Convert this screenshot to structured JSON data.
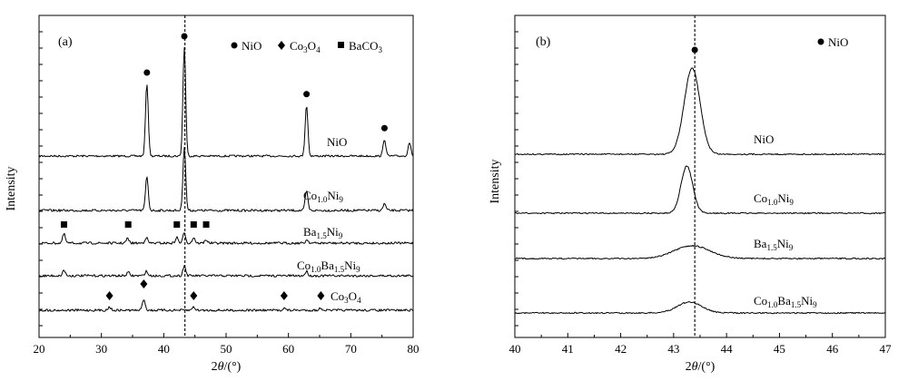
{
  "chart_data": [
    {
      "type": "line",
      "panel": "(a)",
      "xlabel": "2θ/(°)",
      "ylabel": "Intensity",
      "xlim": [
        20,
        80
      ],
      "xticks": [
        20,
        30,
        40,
        50,
        60,
        70,
        80
      ],
      "reference_line_x": 43.4,
      "legend": [
        {
          "marker": "circle",
          "label": "NiO"
        },
        {
          "marker": "diamond",
          "label": "Co3O4"
        },
        {
          "marker": "square",
          "label": "BaCO3"
        }
      ],
      "legend_placement": "top-right",
      "series": [
        {
          "name": "NiO",
          "peaks_2theta": [
            37.3,
            43.3,
            62.9,
            75.4,
            79.4
          ],
          "relative_intensity": [
            0.64,
            0.96,
            0.45,
            0.15,
            0.12
          ]
        },
        {
          "name": "Co1.0Ni9",
          "peaks_2theta": [
            37.3,
            43.3,
            62.9,
            75.4
          ],
          "relative_intensity": [
            0.3,
            0.56,
            0.17,
            0.06
          ]
        },
        {
          "name": "Ba1.5Ni9",
          "peaks_2theta": [
            24.0,
            34.2,
            37.2,
            42.1,
            43.3,
            44.8,
            46.8,
            63.0
          ],
          "relative_intensity": [
            0.08,
            0.04,
            0.05,
            0.05,
            0.09,
            0.05,
            0.03,
            0.03
          ]
        },
        {
          "name": "Co1.0Ba1.5Ni9",
          "peaks_2theta": [
            24.0,
            34.3,
            37.2,
            43.3,
            62.9
          ],
          "relative_intensity": [
            0.05,
            0.03,
            0.04,
            0.09,
            0.04
          ]
        },
        {
          "name": "Co3O4",
          "peaks_2theta": [
            31.3,
            36.8,
            44.8,
            59.3,
            65.2
          ],
          "relative_intensity": [
            0.03,
            0.1,
            0.03,
            0.02,
            0.02
          ]
        }
      ],
      "markers": {
        "NiO": {
          "type": "circle",
          "x": [
            37.3,
            43.3,
            62.9,
            75.4
          ]
        },
        "Ba1.5Ni9": {
          "type": "square",
          "x": [
            24.0,
            34.3,
            42.1,
            44.8,
            46.8
          ]
        },
        "Co3O4": {
          "type": "diamond",
          "x": [
            31.3,
            36.8,
            44.8,
            59.3,
            65.2
          ]
        }
      }
    },
    {
      "type": "line",
      "panel": "(b)",
      "xlabel": "2θ/(°)",
      "ylabel": "Intensity",
      "xlim": [
        40,
        47
      ],
      "xticks": [
        40,
        41,
        42,
        43,
        44,
        45,
        46,
        47
      ],
      "reference_line_x": 43.4,
      "legend": [
        {
          "marker": "circle",
          "label": "NiO"
        }
      ],
      "legend_placement": "top-right",
      "series": [
        {
          "name": "NiO",
          "peak_2theta": 43.35,
          "relative_intensity": 0.95,
          "fwhm": 0.35
        },
        {
          "name": "Co1.0Ni9",
          "peak_2theta": 43.25,
          "relative_intensity": 0.52,
          "fwhm": 0.26
        },
        {
          "name": "Ba1.5Ni9",
          "peak_2theta": 43.35,
          "relative_intensity": 0.14,
          "fwhm": 0.8
        },
        {
          "name": "Co1.0Ba1.5Ni9",
          "peak_2theta": 43.3,
          "relative_intensity": 0.12,
          "fwhm": 0.55
        }
      ],
      "markers": {
        "NiO": {
          "type": "circle",
          "x": [
            43.4
          ]
        }
      }
    }
  ]
}
